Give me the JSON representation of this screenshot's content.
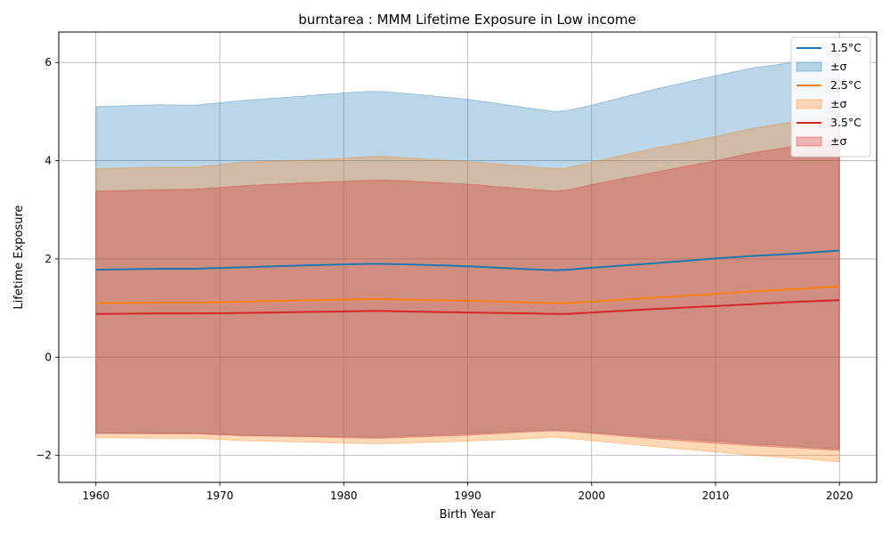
{
  "chart_data": {
    "type": "area",
    "title": "burntarea : MMM Lifetime Exposure in Low income",
    "xlabel": "Birth Year",
    "ylabel": "Lifetime Exposure",
    "xlim": [
      1957,
      2023
    ],
    "ylim": [
      -2.55,
      6.62
    ],
    "xticks": [
      1960,
      1970,
      1980,
      1990,
      2000,
      2010,
      2020
    ],
    "xtick_labels": [
      "1960",
      "1970",
      "1980",
      "1990",
      "2000",
      "2010",
      "2020"
    ],
    "yticks": [
      -2,
      0,
      2,
      4,
      6
    ],
    "ytick_labels": [
      "−2",
      "0",
      "2",
      "4",
      "6"
    ],
    "grid": true,
    "legend_position": "upper right",
    "x": [
      1960,
      1965,
      1968,
      1972,
      1977,
      1980,
      1982,
      1983,
      1985,
      1990,
      1995,
      1997,
      1998,
      2000,
      2005,
      2010,
      2013,
      2016,
      2020
    ],
    "series": [
      {
        "name": "1.5°C",
        "color": "#1f77b4",
        "band_label": "±σ",
        "mean": [
          1.78,
          1.8,
          1.8,
          1.83,
          1.87,
          1.89,
          1.9,
          1.9,
          1.89,
          1.85,
          1.79,
          1.77,
          1.78,
          1.82,
          1.91,
          2.01,
          2.06,
          2.1,
          2.17
        ],
        "upper": [
          5.1,
          5.14,
          5.13,
          5.23,
          5.32,
          5.38,
          5.41,
          5.41,
          5.37,
          5.25,
          5.07,
          5.0,
          5.02,
          5.13,
          5.45,
          5.73,
          5.89,
          5.99,
          6.17
        ],
        "lower": [
          -1.55,
          -1.55,
          -1.55,
          -1.59,
          -1.61,
          -1.62,
          -1.63,
          -1.63,
          -1.61,
          -1.56,
          -1.5,
          -1.48,
          -1.49,
          -1.53,
          -1.63,
          -1.71,
          -1.77,
          -1.81,
          -1.87
        ]
      },
      {
        "name": "2.5°C",
        "color": "#ff7f0e",
        "band_label": "±σ",
        "mean": [
          1.1,
          1.11,
          1.11,
          1.13,
          1.16,
          1.17,
          1.18,
          1.18,
          1.17,
          1.15,
          1.11,
          1.1,
          1.1,
          1.13,
          1.21,
          1.29,
          1.34,
          1.38,
          1.44
        ],
        "upper": [
          3.84,
          3.87,
          3.87,
          3.97,
          4.01,
          4.05,
          4.08,
          4.09,
          4.06,
          3.98,
          3.88,
          3.84,
          3.85,
          3.97,
          4.25,
          4.49,
          4.66,
          4.78,
          4.95
        ],
        "lower": [
          -1.64,
          -1.65,
          -1.65,
          -1.7,
          -1.73,
          -1.75,
          -1.76,
          -1.76,
          -1.75,
          -1.71,
          -1.66,
          -1.63,
          -1.65,
          -1.7,
          -1.82,
          -1.93,
          -2.0,
          -2.05,
          -2.13
        ]
      },
      {
        "name": "3.5°C",
        "color": "#d62728",
        "band_label": "±σ",
        "mean": [
          0.88,
          0.89,
          0.89,
          0.9,
          0.92,
          0.93,
          0.94,
          0.94,
          0.93,
          0.91,
          0.89,
          0.88,
          0.88,
          0.91,
          0.98,
          1.04,
          1.08,
          1.12,
          1.16
        ],
        "upper": [
          3.38,
          3.41,
          3.42,
          3.49,
          3.55,
          3.58,
          3.6,
          3.61,
          3.59,
          3.52,
          3.42,
          3.38,
          3.4,
          3.51,
          3.76,
          4.0,
          4.16,
          4.28,
          4.43
        ],
        "lower": [
          -1.55,
          -1.56,
          -1.56,
          -1.6,
          -1.62,
          -1.64,
          -1.65,
          -1.65,
          -1.63,
          -1.59,
          -1.52,
          -1.5,
          -1.51,
          -1.55,
          -1.66,
          -1.75,
          -1.8,
          -1.84,
          -1.9
        ]
      }
    ]
  }
}
